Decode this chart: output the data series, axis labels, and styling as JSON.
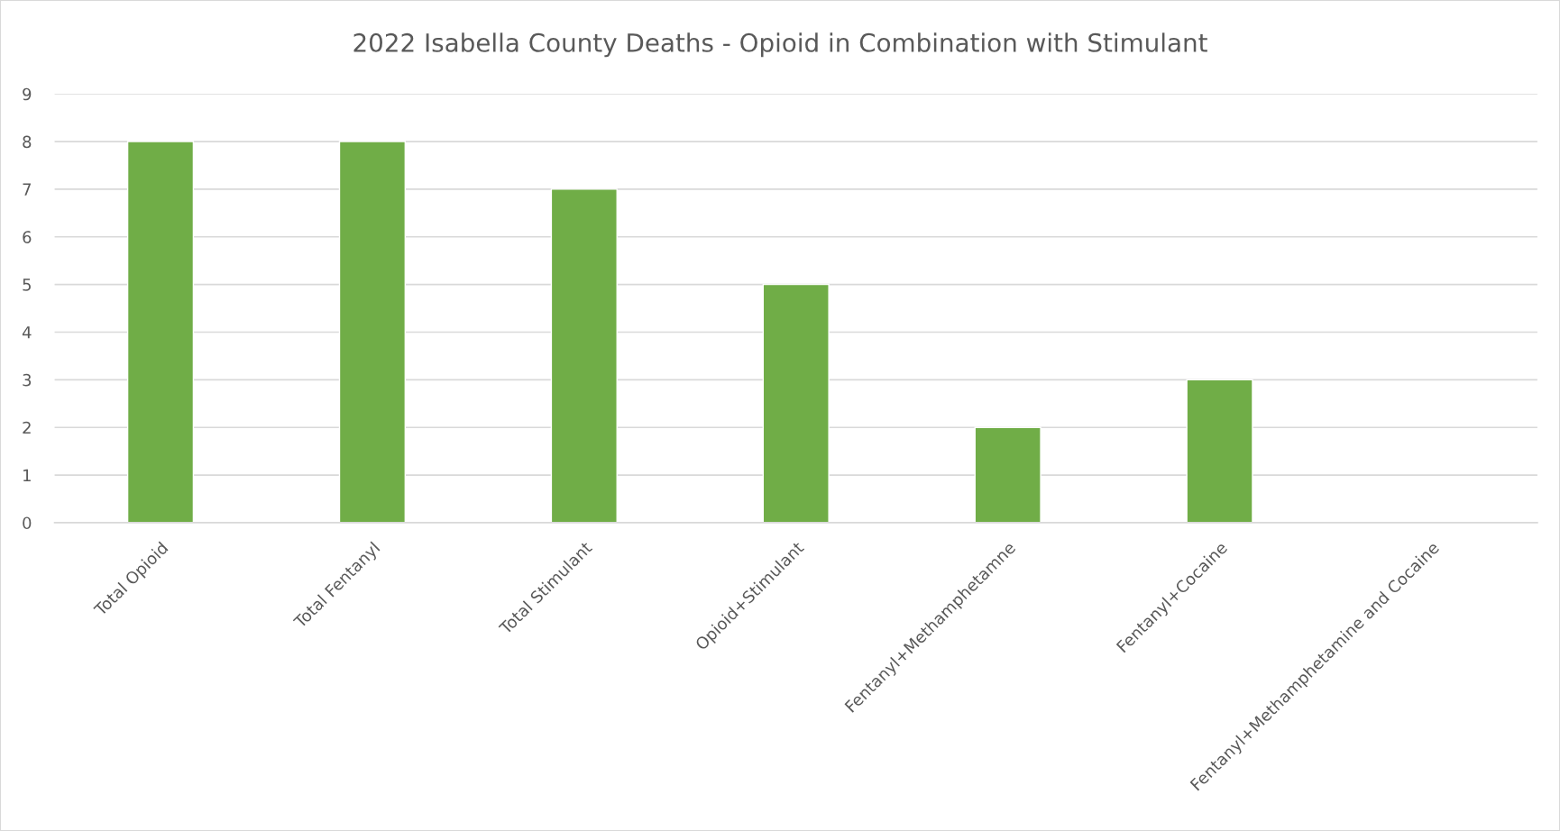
{
  "chart_data": {
    "type": "bar",
    "title": "2022 Isabella County Deaths - Opioid in Combination with Stimulant",
    "categories": [
      "Total Opioid",
      "Total Fentanyl",
      "Total Stimulant",
      "Opioid+Stimulant",
      "Fentanyl+Methamphetamne",
      "Fentanyl+Cocaine",
      "Fentanyl+Methamphetamine and Cocaine"
    ],
    "values": [
      8,
      8,
      7,
      5,
      2,
      3,
      0
    ],
    "color": "#70ad47",
    "ylim": [
      0,
      9
    ],
    "yticks": [
      0,
      1,
      2,
      3,
      4,
      5,
      6,
      7,
      8,
      9
    ],
    "grid": "y"
  }
}
